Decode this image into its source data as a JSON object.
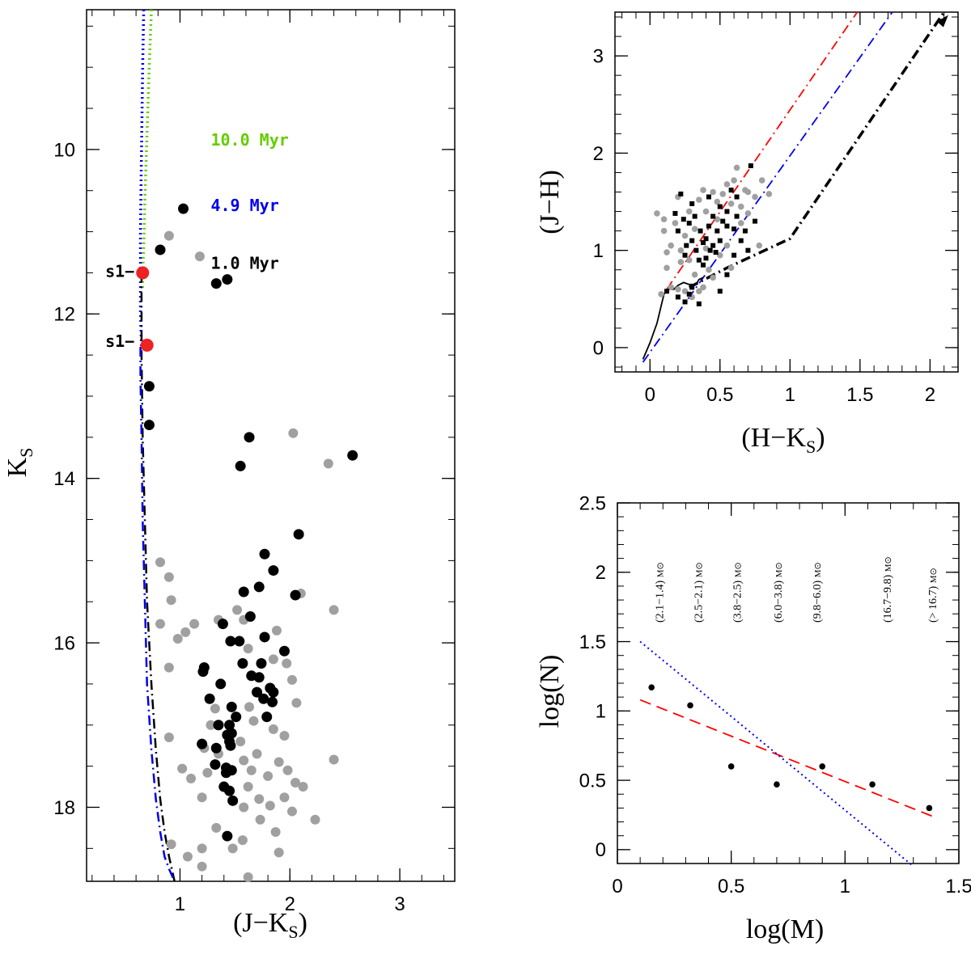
{
  "chart_data": [
    {
      "type": "scatter",
      "panel": "cmd",
      "xlabel_main": "(J−K",
      "xlabel_sub": "S",
      "xlabel_end": ")",
      "ylabel_main": "K",
      "ylabel_sub": "S",
      "xlim": [
        0.15,
        3.5
      ],
      "ylim": [
        18.9,
        8.3
      ],
      "y_inverted": true,
      "x_ticks": [
        1,
        2,
        3
      ],
      "y_ticks": [
        10,
        12,
        14,
        16,
        18
      ],
      "annotations": [
        {
          "text": "10.0 Myr",
          "color": "#66cc00",
          "x": 1.28,
          "y": 9.95
        },
        {
          "text": "4.9 Myr",
          "color": "#0000ee",
          "x": 1.28,
          "y": 10.75
        },
        {
          "text": "1.0 Myr",
          "color": "#000000",
          "x": 1.28,
          "y": 11.45
        },
        {
          "text": "s1−",
          "color": "#000000",
          "x": 0.32,
          "y": 11.55
        },
        {
          "text": "s1−",
          "color": "#000000",
          "x": 0.32,
          "y": 12.4
        }
      ],
      "isochrones": [
        {
          "name": "10.0 Myr",
          "color": "#66cc00",
          "style": "dotted",
          "x": [
            0.74,
            0.72,
            0.7,
            0.68,
            0.67,
            0.66,
            0.66
          ],
          "y": [
            8.3,
            9.0,
            9.8,
            10.6,
            11.2,
            11.5,
            11.7
          ]
        },
        {
          "name": "4.9 Myr",
          "color": "#0000ee",
          "style": "dotted",
          "x": [
            0.67,
            0.66,
            0.65,
            0.64,
            0.64,
            0.64,
            0.65
          ],
          "y": [
            8.3,
            9.0,
            10.0,
            11.0,
            11.5,
            12.0,
            12.4
          ]
        },
        {
          "name": "1.0 Myr",
          "color": "#000000",
          "style": "dashdot",
          "x": [
            0.65,
            0.65,
            0.66,
            0.68,
            0.7,
            0.74,
            0.78,
            0.82,
            0.86,
            0.9,
            0.95
          ],
          "y": [
            11.5,
            12.5,
            13.5,
            14.5,
            15.5,
            16.5,
            17.3,
            17.9,
            18.3,
            18.6,
            18.9
          ]
        },
        {
          "name": "main",
          "color": "#0000ee",
          "style": "dashdot",
          "x": [
            0.64,
            0.64,
            0.65,
            0.66,
            0.68,
            0.7,
            0.74,
            0.78,
            0.82,
            0.86,
            0.9,
            0.95
          ],
          "y": [
            12.4,
            12.8,
            13.5,
            14.5,
            15.5,
            16.5,
            17.3,
            17.9,
            18.3,
            18.6,
            18.75,
            18.9
          ]
        }
      ],
      "red_stars": [
        [
          0.66,
          11.5
        ],
        [
          0.7,
          12.38
        ]
      ],
      "black_points": [
        [
          1.03,
          10.72
        ],
        [
          0.82,
          11.22
        ],
        [
          1.43,
          11.58
        ],
        [
          1.33,
          11.63
        ],
        [
          0.66,
          11.5
        ],
        [
          0.7,
          12.38
        ],
        [
          0.72,
          12.88
        ],
        [
          0.72,
          13.35
        ],
        [
          1.63,
          13.5
        ],
        [
          1.55,
          13.85
        ],
        [
          2.57,
          13.72
        ],
        [
          2.08,
          14.68
        ],
        [
          1.77,
          14.92
        ],
        [
          1.85,
          15.12
        ],
        [
          2.05,
          15.42
        ],
        [
          1.72,
          15.32
        ],
        [
          1.58,
          15.38
        ],
        [
          1.39,
          15.77
        ],
        [
          1.64,
          15.68
        ],
        [
          1.54,
          15.98
        ],
        [
          1.46,
          15.98
        ],
        [
          1.77,
          15.93
        ],
        [
          1.95,
          16.1
        ],
        [
          1.74,
          16.25
        ],
        [
          1.57,
          16.25
        ],
        [
          1.65,
          16.4
        ],
        [
          1.72,
          16.42
        ],
        [
          1.82,
          16.55
        ],
        [
          1.85,
          16.6
        ],
        [
          1.7,
          16.6
        ],
        [
          1.76,
          16.68
        ],
        [
          1.22,
          16.3
        ],
        [
          1.21,
          16.35
        ],
        [
          1.37,
          16.5
        ],
        [
          1.27,
          16.68
        ],
        [
          1.47,
          16.78
        ],
        [
          1.84,
          16.72
        ],
        [
          1.79,
          16.9
        ],
        [
          1.51,
          16.9
        ],
        [
          1.45,
          17.0
        ],
        [
          1.35,
          17.0
        ],
        [
          1.47,
          17.1
        ],
        [
          1.43,
          17.12
        ],
        [
          1.45,
          17.2
        ],
        [
          1.46,
          17.25
        ],
        [
          1.33,
          17.28
        ],
        [
          1.2,
          17.23
        ],
        [
          1.32,
          17.48
        ],
        [
          1.42,
          17.52
        ],
        [
          1.44,
          17.55
        ],
        [
          1.47,
          17.55
        ],
        [
          1.42,
          17.58
        ],
        [
          1.4,
          17.75
        ],
        [
          1.45,
          17.8
        ],
        [
          1.48,
          17.92
        ],
        [
          1.43,
          18.35
        ]
      ],
      "gray_points": [
        [
          0.9,
          11.05
        ],
        [
          1.18,
          11.3
        ],
        [
          0.82,
          15.02
        ],
        [
          0.9,
          15.2
        ],
        [
          0.92,
          15.48
        ],
        [
          0.82,
          15.77
        ],
        [
          0.98,
          15.95
        ],
        [
          1.05,
          15.87
        ],
        [
          1.13,
          15.77
        ],
        [
          0.9,
          16.3
        ],
        [
          1.35,
          15.72
        ],
        [
          1.52,
          15.6
        ],
        [
          1.58,
          15.72
        ],
        [
          1.62,
          16.07
        ],
        [
          1.88,
          15.85
        ],
        [
          2.1,
          15.4
        ],
        [
          2.4,
          15.6
        ],
        [
          1.97,
          16.25
        ],
        [
          2.02,
          16.45
        ],
        [
          2.06,
          16.73
        ],
        [
          1.85,
          16.2
        ],
        [
          1.63,
          16.78
        ],
        [
          1.67,
          16.95
        ],
        [
          1.85,
          17.05
        ],
        [
          1.95,
          17.13
        ],
        [
          1.55,
          17.2
        ],
        [
          1.32,
          16.8
        ],
        [
          1.28,
          17.0
        ],
        [
          1.22,
          17.28
        ],
        [
          1.35,
          17.35
        ],
        [
          1.58,
          17.43
        ],
        [
          1.25,
          17.58
        ],
        [
          1.7,
          17.35
        ],
        [
          1.65,
          17.55
        ],
        [
          1.8,
          17.62
        ],
        [
          1.9,
          17.45
        ],
        [
          1.98,
          17.55
        ],
        [
          2.05,
          17.7
        ],
        [
          2.12,
          17.75
        ],
        [
          2.4,
          17.42
        ],
        [
          1.02,
          17.53
        ],
        [
          1.1,
          17.65
        ],
        [
          1.2,
          17.88
        ],
        [
          1.62,
          17.75
        ],
        [
          1.58,
          18.0
        ],
        [
          1.72,
          17.9
        ],
        [
          1.82,
          17.98
        ],
        [
          1.95,
          17.88
        ],
        [
          2.02,
          18.05
        ],
        [
          1.73,
          18.15
        ],
        [
          1.87,
          18.3
        ],
        [
          1.33,
          18.25
        ],
        [
          1.57,
          18.4
        ],
        [
          1.2,
          18.5
        ],
        [
          0.92,
          18.45
        ],
        [
          1.07,
          18.6
        ],
        [
          1.2,
          18.72
        ],
        [
          1.62,
          18.85
        ],
        [
          2.23,
          18.15
        ],
        [
          1.9,
          18.55
        ],
        [
          0.9,
          17.15
        ],
        [
          2.03,
          13.45
        ],
        [
          2.35,
          13.82
        ],
        [
          1.48,
          18.5
        ]
      ]
    },
    {
      "type": "scatter",
      "panel": "ccd",
      "xlabel_main": "(H−K",
      "xlabel_sub": "S",
      "xlabel_end": ")",
      "ylabel": "(J−H)",
      "xlim": [
        -0.25,
        2.2
      ],
      "ylim": [
        -0.25,
        3.45
      ],
      "x_ticks": [
        0,
        0.5,
        1,
        1.5,
        2
      ],
      "x_tick_labels": [
        "0",
        "0.5",
        "1",
        "1.5",
        "2"
      ],
      "y_ticks": [
        0,
        1,
        2,
        3
      ],
      "y_tick_labels": [
        "0",
        "1",
        "2",
        "3"
      ],
      "reddening_lines": [
        {
          "color": "#ff0000",
          "style": "dashdot",
          "x": [
            0.12,
            1.48
          ],
          "y": [
            0.6,
            3.45
          ]
        },
        {
          "color": "#0000ee",
          "style": "dashdot",
          "x": [
            -0.05,
            1.73
          ],
          "y": [
            -0.15,
            3.45
          ]
        }
      ],
      "ctts_locus": {
        "color": "#000000",
        "style": "dashdot",
        "x": [
          0.28,
          0.55,
          1.0,
          2.1
        ],
        "y": [
          0.62,
          0.82,
          1.12,
          3.45
        ]
      },
      "dwarf_locus": {
        "color": "#000000",
        "style": "solid",
        "x": [
          -0.05,
          0.0,
          0.05,
          0.08,
          0.1,
          0.13,
          0.17,
          0.2,
          0.24,
          0.28,
          0.33,
          0.35,
          0.38
        ],
        "y": [
          -0.12,
          0.05,
          0.25,
          0.43,
          0.55,
          0.6,
          0.6,
          0.64,
          0.67,
          0.65,
          0.65,
          0.7,
          0.72
        ]
      },
      "black_squares": [
        [
          0.12,
          0.58
        ],
        [
          0.2,
          0.52
        ],
        [
          0.25,
          0.47
        ],
        [
          0.28,
          0.55
        ],
        [
          0.3,
          0.62
        ],
        [
          0.22,
          1.58
        ],
        [
          0.18,
          1.38
        ],
        [
          0.24,
          1.32
        ],
        [
          0.2,
          1.2
        ],
        [
          0.26,
          1.05
        ],
        [
          0.3,
          1.1
        ],
        [
          0.33,
          1.0
        ],
        [
          0.35,
          0.9
        ],
        [
          0.38,
          0.85
        ],
        [
          0.4,
          1.12
        ],
        [
          0.36,
          1.2
        ],
        [
          0.42,
          1.25
        ],
        [
          0.45,
          1.05
        ],
        [
          0.3,
          1.48
        ],
        [
          0.28,
          1.28
        ],
        [
          0.32,
          1.35
        ],
        [
          0.45,
          1.35
        ],
        [
          0.48,
          1.2
        ],
        [
          0.5,
          1.1
        ],
        [
          0.52,
          1.3
        ],
        [
          0.55,
          1.25
        ],
        [
          0.6,
          1.22
        ],
        [
          0.62,
          1.35
        ],
        [
          0.65,
          1.1
        ],
        [
          0.7,
          1.0
        ],
        [
          0.72,
          1.87
        ],
        [
          0.58,
          1.62
        ],
        [
          0.5,
          1.45
        ],
        [
          0.42,
          1.55
        ],
        [
          0.4,
          0.92
        ],
        [
          0.35,
          0.45
        ],
        [
          0.5,
          0.58
        ],
        [
          0.55,
          0.75
        ],
        [
          0.68,
          1.2
        ],
        [
          0.75,
          1.3
        ],
        [
          0.38,
          1.08
        ],
        [
          0.43,
          1.0
        ],
        [
          0.25,
          0.95
        ],
        [
          0.47,
          0.98
        ],
        [
          0.55,
          1.4
        ],
        [
          0.6,
          0.95
        ],
        [
          0.62,
          1.55
        ]
      ],
      "gray_points": [
        [
          0.05,
          1.38
        ],
        [
          0.1,
          1.2
        ],
        [
          0.1,
          1.32
        ],
        [
          0.12,
          0.82
        ],
        [
          0.15,
          1.05
        ],
        [
          0.18,
          1.28
        ],
        [
          0.2,
          1.55
        ],
        [
          0.22,
          0.88
        ],
        [
          0.25,
          1.15
        ],
        [
          0.28,
          0.9
        ],
        [
          0.32,
          0.75
        ],
        [
          0.35,
          1.52
        ],
        [
          0.38,
          1.62
        ],
        [
          0.4,
          1.4
        ],
        [
          0.45,
          1.6
        ],
        [
          0.48,
          1.5
        ],
        [
          0.52,
          1.58
        ],
        [
          0.55,
          1.68
        ],
        [
          0.6,
          1.72
        ],
        [
          0.62,
          1.85
        ],
        [
          0.65,
          1.45
        ],
        [
          0.7,
          1.6
        ],
        [
          0.75,
          1.55
        ],
        [
          0.8,
          1.72
        ],
        [
          0.85,
          1.58
        ],
        [
          0.78,
          1.05
        ],
        [
          0.58,
          0.82
        ],
        [
          0.42,
          0.8
        ],
        [
          0.3,
          0.52
        ],
        [
          0.2,
          0.6
        ],
        [
          0.15,
          0.62
        ],
        [
          0.38,
          0.62
        ],
        [
          0.45,
          0.72
        ],
        [
          0.5,
          0.95
        ],
        [
          0.55,
          1.05
        ],
        [
          0.65,
          1.28
        ],
        [
          0.7,
          1.38
        ],
        [
          0.22,
          1.0
        ],
        [
          0.28,
          1.4
        ],
        [
          0.12,
          0.98
        ],
        [
          0.32,
          1.22
        ],
        [
          0.48,
          1.32
        ],
        [
          0.58,
          1.48
        ],
        [
          0.68,
          1.62
        ],
        [
          0.4,
          1.02
        ],
        [
          0.08,
          0.55
        ],
        [
          0.25,
          0.58
        ],
        [
          0.35,
          0.58
        ]
      ]
    },
    {
      "type": "scatter",
      "panel": "mf",
      "xlabel": "log(M)",
      "ylabel": "log(N)",
      "xlim": [
        0,
        1.5
      ],
      "ylim": [
        -0.1,
        2.5
      ],
      "x_ticks": [
        0,
        0.5,
        1,
        1.5
      ],
      "x_tick_labels": [
        "0",
        "0.5",
        "1",
        "1.5"
      ],
      "y_ticks": [
        0,
        0.5,
        1,
        1.5,
        2,
        2.5
      ],
      "y_tick_labels": [
        "0",
        "0.5",
        "1",
        "1.5",
        "2",
        "2.5"
      ],
      "points": [
        {
          "x": 0.15,
          "y": 1.17
        },
        {
          "x": 0.32,
          "y": 1.04
        },
        {
          "x": 0.5,
          "y": 0.6
        },
        {
          "x": 0.7,
          "y": 0.47
        },
        {
          "x": 0.9,
          "y": 0.6
        },
        {
          "x": 1.12,
          "y": 0.47
        },
        {
          "x": 1.37,
          "y": 0.3
        }
      ],
      "fit_lines": [
        {
          "color": "#ff0000",
          "style": "dashed",
          "x": [
            0.1,
            1.4
          ],
          "y": [
            1.08,
            0.23
          ]
        },
        {
          "color": "#0000ee",
          "style": "dotted",
          "x": [
            0.1,
            1.3
          ],
          "y": [
            1.5,
            -0.12
          ]
        }
      ],
      "mass_bins": [
        {
          "x": 0.18,
          "range": "(2.1−1.4)",
          "unit": "M⊙"
        },
        {
          "x": 0.35,
          "range": "(2.5−2.1)",
          "unit": "M⊙"
        },
        {
          "x": 0.52,
          "range": "(3.8−2.5)",
          "unit": "M⊙"
        },
        {
          "x": 0.7,
          "range": "(6.0−3.8)",
          "unit": "M⊙"
        },
        {
          "x": 0.87,
          "range": "(9.8−6.0)",
          "unit": "M⊙"
        },
        {
          "x": 1.18,
          "range": "(16.7−9.8)",
          "unit": "M⊙"
        },
        {
          "x": 1.38,
          "range": "(> 16.7)",
          "unit": "M⊙"
        }
      ]
    }
  ]
}
